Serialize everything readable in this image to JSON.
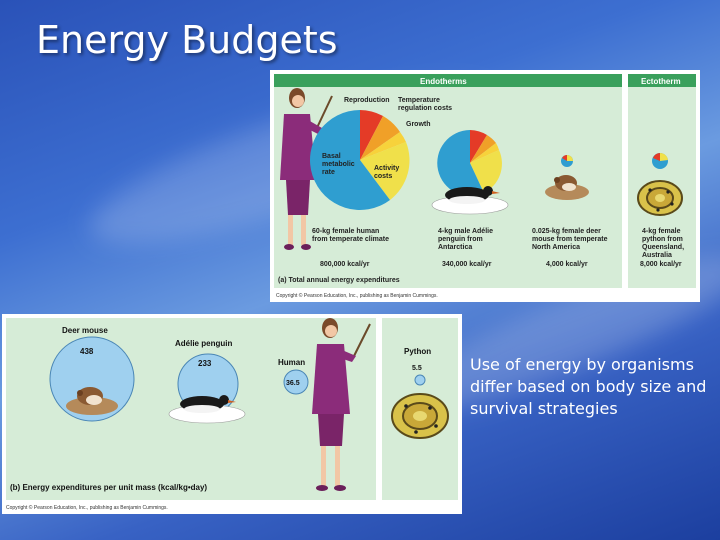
{
  "slide": {
    "title": "Energy Budgets",
    "caption": "Use of energy by organisms differ based on body size and survival strategies"
  },
  "panel_a": {
    "header_endotherms": "Endotherms",
    "header_ectotherm": "Ectotherm",
    "pie_labels": {
      "reproduction": "Reproduction",
      "temperature": [
        "Temperature",
        "regulation costs"
      ],
      "growth": "Growth",
      "basal": [
        "Basal",
        "metabolic",
        "rate"
      ],
      "activity": [
        "Activity",
        "costs"
      ]
    },
    "organisms": [
      {
        "desc": [
          "60-kg female human",
          "from temperate climate"
        ],
        "value": "800,000 kcal/yr"
      },
      {
        "desc": [
          "4-kg male Adélie",
          "penguin from",
          "Antarctica"
        ],
        "value": "340,000 kcal/yr"
      },
      {
        "desc": [
          "0.025-kg female deer",
          "mouse from temperate",
          "North America"
        ],
        "value": "4,000 kcal/yr"
      },
      {
        "desc": [
          "4-kg female",
          "python from",
          "Queensland,",
          "Australia"
        ],
        "value": "8,000 kcal/yr"
      }
    ],
    "footer": "(a) Total annual energy expenditures",
    "copyright": "Copyright © Pearson Education, Inc., publishing as Benjamin Cummings."
  },
  "panel_b": {
    "animals": [
      {
        "name": "Deer mouse",
        "value": "438"
      },
      {
        "name": "Adélie penguin",
        "value": "233"
      },
      {
        "name": "Human",
        "value": "36.5"
      },
      {
        "name": "Python",
        "value": "5.5"
      }
    ],
    "footer": "(b) Energy expenditures per unit mass (kcal/kg•day)",
    "copyright": "Copyright © Pearson Education, Inc., publishing as Benjamin Cummings."
  },
  "colors": {
    "panel_bg": "#d6ecd7",
    "header_green": "#3aa05c",
    "basal": "#2f9ed0",
    "activity": "#f0e04a",
    "reproduction": "#e43b27",
    "temperature": "#f0a028",
    "growth": "#f7d23b",
    "circle_fill": "#9fd0ef"
  }
}
